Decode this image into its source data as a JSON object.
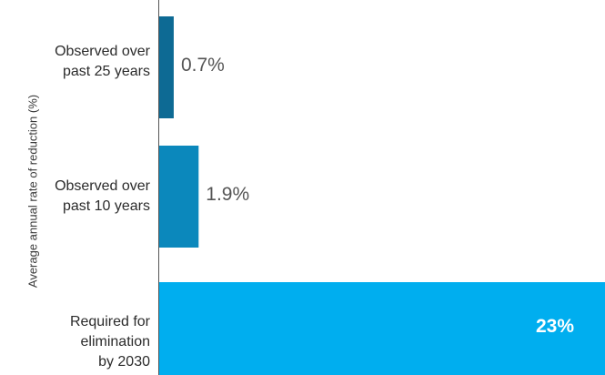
{
  "chart_data": {
    "type": "bar",
    "orientation": "horizontal",
    "title_fragment": "",
    "ylabel": "Average annual rate of reduction (%)",
    "categories": [
      "Observed over\npast 25 years",
      "Observed over\npast 10 years",
      "Required for\nelimination\nby 2030"
    ],
    "values": [
      0.7,
      1.9,
      23
    ],
    "value_labels": [
      "0.7%",
      "1.9%",
      "23%"
    ],
    "colors": [
      "#0d6a94",
      "#0b88bc",
      "#00aeef"
    ],
    "xlim": [
      0,
      21.5
    ],
    "grid": false,
    "legend": "none"
  }
}
